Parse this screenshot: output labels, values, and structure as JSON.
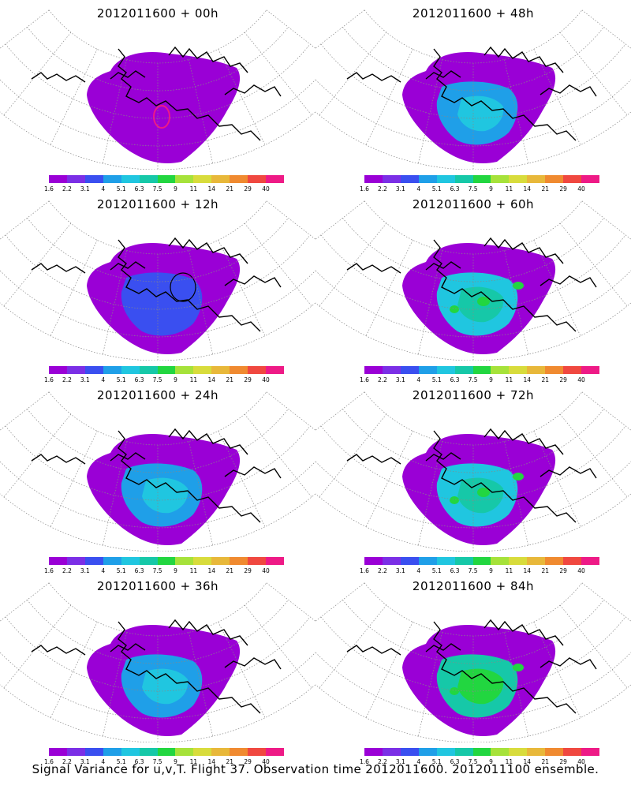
{
  "caption": "Signal Variance for u,v,T. Flight 37. Observation time 2012011600. 2012011100 ensemble.",
  "colors": [
    "#9a00d6",
    "#7b2fe6",
    "#3a4ff0",
    "#1f9fe8",
    "#20c6e0",
    "#16c8a8",
    "#22d640",
    "#a6e23a",
    "#d8dc3c",
    "#e8b83a",
    "#f08a30",
    "#f04840",
    "#ee1a86"
  ],
  "colorbar_labels": [
    "1.6",
    "2.2",
    "3.1",
    "4",
    "5.1",
    "6.3",
    "7.5",
    "9",
    "11",
    "14",
    "21",
    "29",
    "40"
  ],
  "panels": [
    {
      "title": "2012011600 + 00h",
      "level": 0
    },
    {
      "title": "2012011600 + 48h",
      "level": 3
    },
    {
      "title": "2012011600 + 12h",
      "level": 1
    },
    {
      "title": "2012011600 + 60h",
      "level": 4
    },
    {
      "title": "2012011600 + 24h",
      "level": 2
    },
    {
      "title": "2012011600 + 72h",
      "level": 5
    },
    {
      "title": "2012011600 + 36h",
      "level": 2
    },
    {
      "title": "2012011600 + 84h",
      "level": 6
    }
  ],
  "chart_data": [
    {
      "type": "heatmap",
      "title": "2012011600 + 00h",
      "colorbar": [
        "1.6",
        "2.2",
        "3.1",
        "4",
        "5.1",
        "6.3",
        "7.5",
        "9",
        "11",
        "14",
        "21",
        "29",
        "40"
      ]
    },
    {
      "type": "heatmap",
      "title": "2012011600 + 48h",
      "colorbar": [
        "1.6",
        "2.2",
        "3.1",
        "4",
        "5.1",
        "6.3",
        "7.5",
        "9",
        "11",
        "14",
        "21",
        "29",
        "40"
      ]
    },
    {
      "type": "heatmap",
      "title": "2012011600 + 12h",
      "colorbar": [
        "1.6",
        "2.2",
        "3.1",
        "4",
        "5.1",
        "6.3",
        "7.5",
        "9",
        "11",
        "14",
        "21",
        "29",
        "40"
      ]
    },
    {
      "type": "heatmap",
      "title": "2012011600 + 60h",
      "colorbar": [
        "1.6",
        "2.2",
        "3.1",
        "4",
        "5.1",
        "6.3",
        "7.5",
        "9",
        "11",
        "14",
        "21",
        "29",
        "40"
      ]
    },
    {
      "type": "heatmap",
      "title": "2012011600 + 24h",
      "colorbar": [
        "1.6",
        "2.2",
        "3.1",
        "4",
        "5.1",
        "6.3",
        "7.5",
        "9",
        "11",
        "14",
        "21",
        "29",
        "40"
      ]
    },
    {
      "type": "heatmap",
      "title": "2012011600 + 72h",
      "colorbar": [
        "1.6",
        "2.2",
        "3.1",
        "4",
        "5.1",
        "6.3",
        "7.5",
        "9",
        "11",
        "14",
        "21",
        "29",
        "40"
      ]
    },
    {
      "type": "heatmap",
      "title": "2012011600 + 36h",
      "colorbar": [
        "1.6",
        "2.2",
        "3.1",
        "4",
        "5.1",
        "6.3",
        "7.5",
        "9",
        "11",
        "14",
        "21",
        "29",
        "40"
      ]
    },
    {
      "type": "heatmap",
      "title": "2012011600 + 84h",
      "colorbar": [
        "1.6",
        "2.2",
        "3.1",
        "4",
        "5.1",
        "6.3",
        "7.5",
        "9",
        "11",
        "14",
        "21",
        "29",
        "40"
      ]
    }
  ]
}
